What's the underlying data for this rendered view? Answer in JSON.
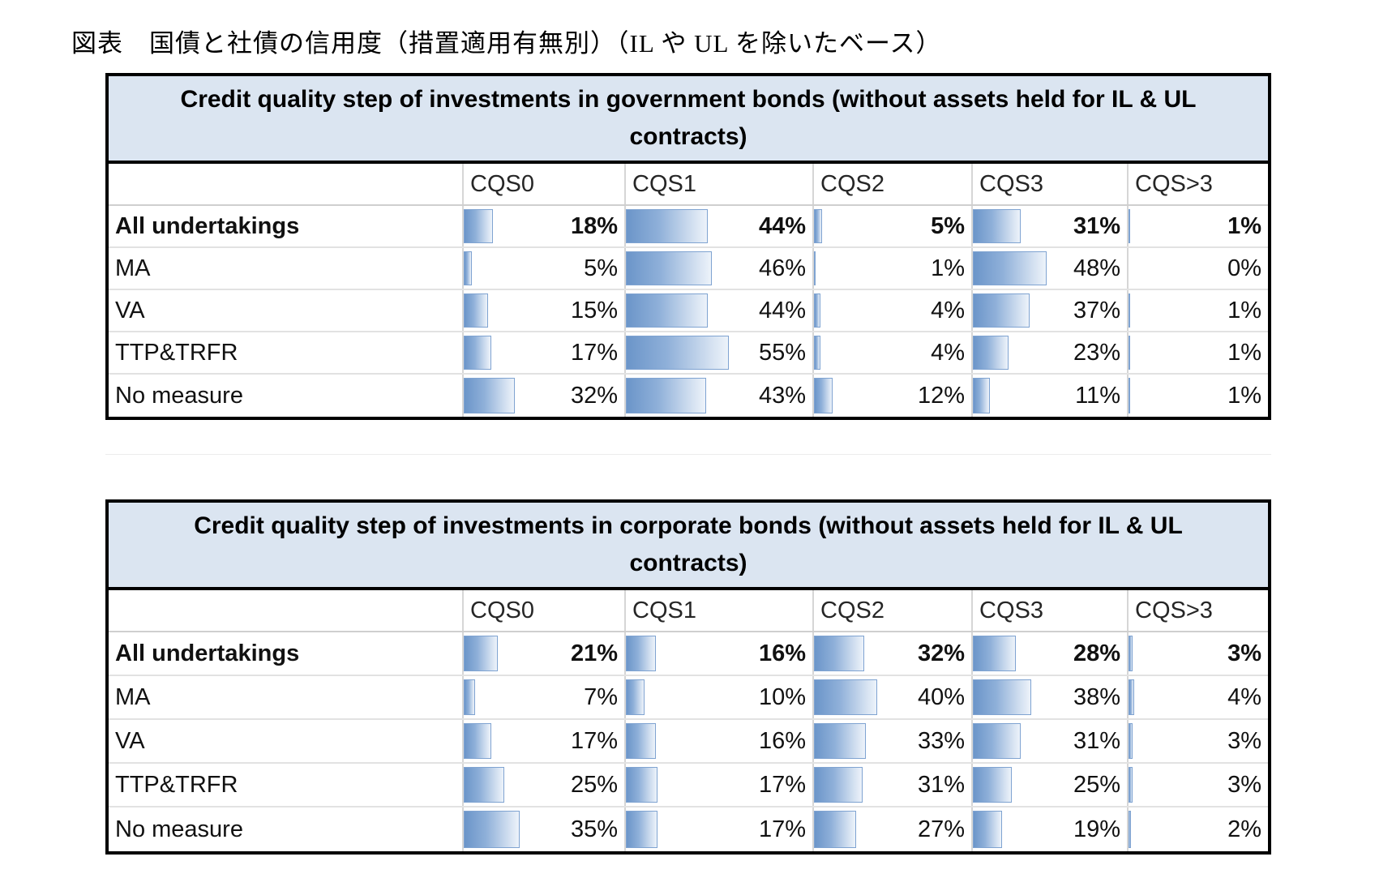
{
  "figure_title": "図表　国債と社債の信用度（措置適用有無別）（IL や UL を除いたベース）",
  "colors": {
    "table_title_bg": "#dbe5f1",
    "bar_fill_left": "#6b95c9",
    "bar_fill_right": "#edf3fa",
    "bar_border": "#7fa3d1",
    "outer_border": "#000000",
    "grid_line": "#d6d6d6"
  },
  "chart_data": [
    {
      "type": "table",
      "title": "Credit quality step of investments in government bonds (without assets held for IL & UL contracts)",
      "columns": [
        "CQS0",
        "CQS1",
        "CQS2",
        "CQS3",
        "CQS>3"
      ],
      "unit": "%",
      "bar_scale": "bar width = value percent of cell width, range 0-100",
      "rows": [
        {
          "label": "All undertakings",
          "bold": true,
          "values": [
            18,
            44,
            5,
            31,
            1
          ]
        },
        {
          "label": "MA",
          "bold": false,
          "values": [
            5,
            46,
            1,
            48,
            0
          ]
        },
        {
          "label": "VA",
          "bold": false,
          "values": [
            15,
            44,
            4,
            37,
            1
          ]
        },
        {
          "label": "TTP&TRFR",
          "bold": false,
          "values": [
            17,
            55,
            4,
            23,
            1
          ]
        },
        {
          "label": "No measure",
          "bold": false,
          "values": [
            32,
            43,
            12,
            11,
            1
          ]
        }
      ]
    },
    {
      "type": "table",
      "title": "Credit quality step of investments in corporate bonds (without assets held for IL & UL contracts)",
      "columns": [
        "CQS0",
        "CQS1",
        "CQS2",
        "CQS3",
        "CQS>3"
      ],
      "unit": "%",
      "bar_scale": "bar width = value percent of cell width, range 0-100",
      "rows": [
        {
          "label": "All undertakings",
          "bold": true,
          "values": [
            21,
            16,
            32,
            28,
            3
          ]
        },
        {
          "label": "MA",
          "bold": false,
          "values": [
            7,
            10,
            40,
            38,
            4
          ]
        },
        {
          "label": "VA",
          "bold": false,
          "values": [
            17,
            16,
            33,
            31,
            3
          ]
        },
        {
          "label": "TTP&TRFR",
          "bold": false,
          "values": [
            25,
            17,
            31,
            25,
            3
          ]
        },
        {
          "label": "No measure",
          "bold": false,
          "values": [
            35,
            17,
            27,
            19,
            2
          ]
        }
      ]
    }
  ]
}
